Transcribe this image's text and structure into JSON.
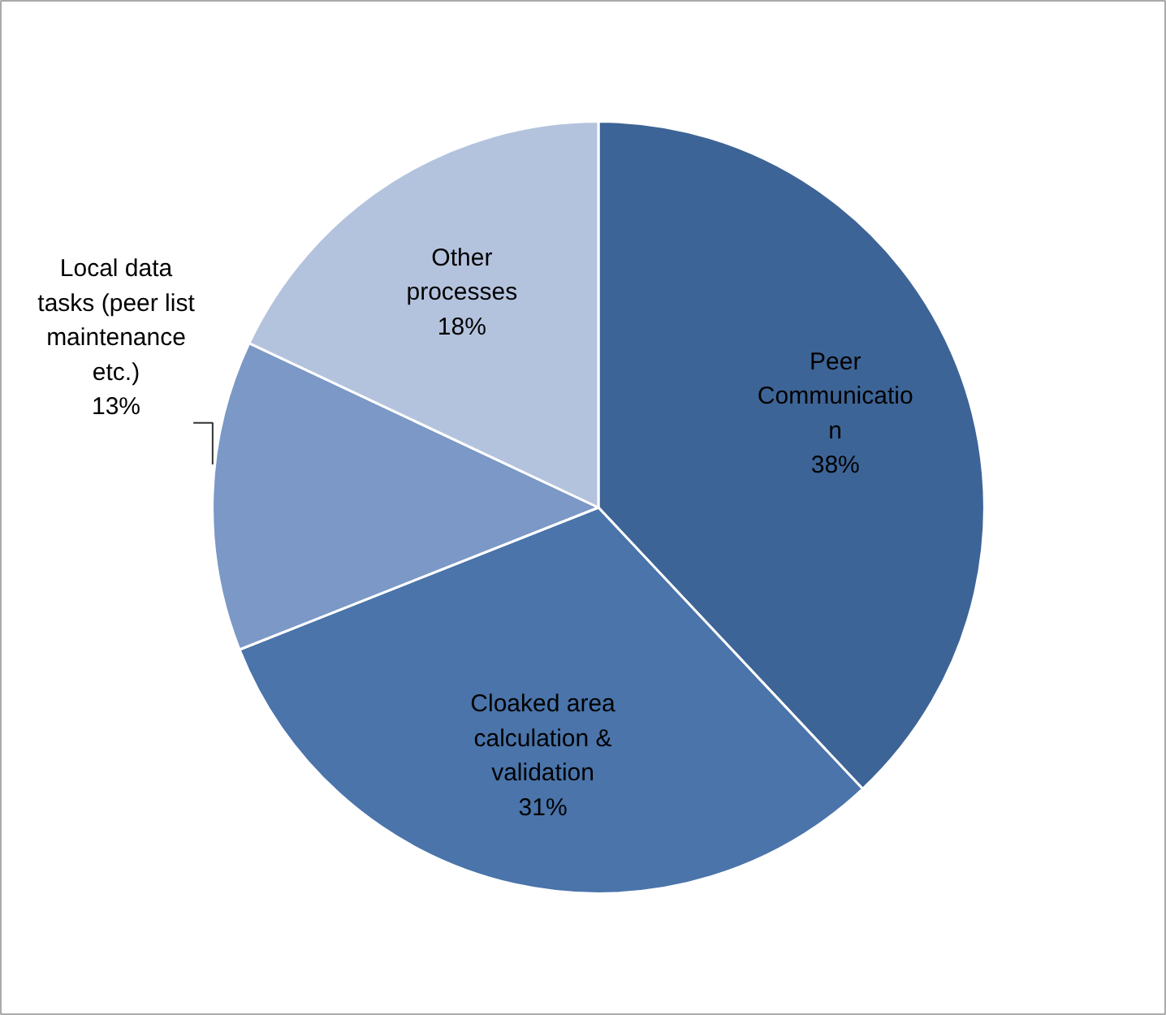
{
  "chart_data": {
    "type": "pie",
    "categories": [
      "Peer\nCommunicatio\nn",
      "Cloaked area\ncalculation &\nvalidation",
      "Local data\ntasks (peer list\nmaintenance\netc.)",
      "Other\nprocesses"
    ],
    "values": [
      38,
      31,
      13,
      18
    ],
    "colors": [
      "#3d6496",
      "#4a74aa",
      "#7b98c6",
      "#b4c3dd"
    ],
    "value_labels": [
      "38%",
      "31%",
      "13%",
      "18%"
    ]
  }
}
